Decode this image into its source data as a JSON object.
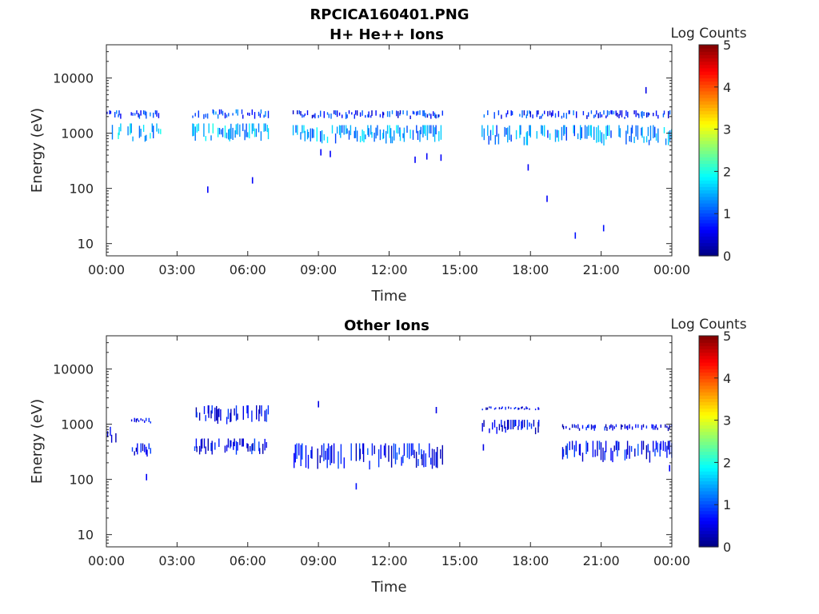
{
  "figure_title": "RPCICA160401.PNG",
  "colors": {
    "axis": "#262626",
    "background": "#ffffff"
  },
  "chart_data": [
    {
      "type": "heatmap",
      "title": "H+ He++ Ions",
      "xlabel": "Time",
      "ylabel": "Energy (eV)",
      "xlim_hours": [
        0,
        24
      ],
      "x_ticks": [
        "00:00",
        "03:00",
        "06:00",
        "09:00",
        "12:00",
        "15:00",
        "18:00",
        "21:00",
        "00:00"
      ],
      "y_scale": "log",
      "ylim": [
        6,
        40000
      ],
      "y_ticks": [
        {
          "value": 10,
          "label": "10"
        },
        {
          "value": 100,
          "label": "100"
        },
        {
          "value": 1000,
          "label": "1000"
        },
        {
          "value": 10000,
          "label": "10000"
        }
      ],
      "colorbar": {
        "label": "Log Counts",
        "range": [
          0,
          5
        ],
        "ticks": [
          "0",
          "1",
          "2",
          "3",
          "4",
          "5"
        ],
        "colormap": "jet"
      },
      "grid": false,
      "blocks": [
        {
          "start": 0.0,
          "end": 2.3,
          "bands": [
            [
              1800,
              2600,
              0.9
            ],
            [
              700,
              1500,
              1.5
            ]
          ]
        },
        {
          "start": 3.6,
          "end": 6.9,
          "bands": [
            [
              1800,
              2700,
              1.0
            ],
            [
              700,
              1500,
              1.5
            ]
          ]
        },
        {
          "start": 7.9,
          "end": 14.3,
          "bands": [
            [
              1800,
              2600,
              0.8
            ],
            [
              650,
              1400,
              1.4
            ]
          ]
        },
        {
          "start": 15.9,
          "end": 24.0,
          "bands": [
            [
              1800,
              2600,
              0.8
            ],
            [
              600,
              1400,
              1.3
            ]
          ]
        }
      ],
      "points": [
        {
          "t": 4.3,
          "e": 95,
          "c": 0.6
        },
        {
          "t": 6.2,
          "e": 140,
          "c": 0.6
        },
        {
          "t": 9.1,
          "e": 450,
          "c": 0.6
        },
        {
          "t": 9.5,
          "e": 420,
          "c": 0.6
        },
        {
          "t": 13.1,
          "e": 330,
          "c": 0.6
        },
        {
          "t": 13.6,
          "e": 380,
          "c": 0.6
        },
        {
          "t": 14.2,
          "e": 360,
          "c": 0.6
        },
        {
          "t": 17.9,
          "e": 240,
          "c": 0.6
        },
        {
          "t": 18.7,
          "e": 65,
          "c": 0.6
        },
        {
          "t": 19.9,
          "e": 14,
          "c": 0.7
        },
        {
          "t": 21.1,
          "e": 19,
          "c": 0.7
        },
        {
          "t": 22.9,
          "e": 6000,
          "c": 0.5
        }
      ]
    },
    {
      "type": "heatmap",
      "title": "Other Ions",
      "xlabel": "Time",
      "ylabel": "Energy (eV)",
      "xlim_hours": [
        0,
        24
      ],
      "x_ticks": [
        "00:00",
        "03:00",
        "06:00",
        "09:00",
        "12:00",
        "15:00",
        "18:00",
        "21:00",
        "00:00"
      ],
      "y_scale": "log",
      "ylim": [
        6,
        40000
      ],
      "y_ticks": [
        {
          "value": 10,
          "label": "10"
        },
        {
          "value": 100,
          "label": "100"
        },
        {
          "value": 1000,
          "label": "1000"
        },
        {
          "value": 10000,
          "label": "10000"
        }
      ],
      "colorbar": {
        "label": "Log Counts",
        "range": [
          0,
          5
        ],
        "ticks": [
          "0",
          "1",
          "2",
          "3",
          "4",
          "5"
        ],
        "colormap": "jet"
      },
      "grid": false,
      "blocks": [
        {
          "start": 0.0,
          "end": 0.4,
          "bands": [
            [
              400,
              900,
              0.6
            ]
          ]
        },
        {
          "start": 1.0,
          "end": 1.9,
          "bands": [
            [
              250,
              450,
              0.5
            ],
            [
              1000,
              1300,
              0.5
            ]
          ]
        },
        {
          "start": 3.6,
          "end": 6.9,
          "bands": [
            [
              280,
              550,
              0.6
            ],
            [
              1000,
              2200,
              0.5
            ]
          ]
        },
        {
          "start": 7.9,
          "end": 14.3,
          "bands": [
            [
              150,
              450,
              0.6
            ]
          ]
        },
        {
          "start": 15.9,
          "end": 18.4,
          "bands": [
            [
              650,
              1200,
              0.5
            ],
            [
              1800,
              2100,
              0.5
            ]
          ]
        },
        {
          "start": 19.3,
          "end": 24.0,
          "bands": [
            [
              200,
              500,
              0.6
            ],
            [
              750,
              1000,
              0.5
            ]
          ]
        }
      ],
      "points": [
        {
          "t": 1.7,
          "e": 110,
          "c": 0.6
        },
        {
          "t": 9.0,
          "e": 2300,
          "c": 0.5
        },
        {
          "t": 10.6,
          "e": 75,
          "c": 0.7
        },
        {
          "t": 14.0,
          "e": 1800,
          "c": 0.5
        },
        {
          "t": 16.0,
          "e": 380,
          "c": 0.5
        },
        {
          "t": 23.9,
          "e": 160,
          "c": 0.6
        }
      ]
    }
  ]
}
